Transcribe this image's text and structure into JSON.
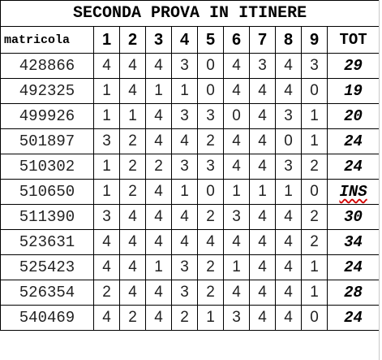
{
  "title": "SECONDA PROVA IN ITINERE",
  "headers": {
    "matricola": "matricola",
    "questions": [
      "1",
      "2",
      "3",
      "4",
      "5",
      "6",
      "7",
      "8",
      "9"
    ],
    "tot": "TOT"
  },
  "rows": [
    {
      "matricola": "428866",
      "scores": [
        "4",
        "4",
        "4",
        "3",
        "0",
        "4",
        "3",
        "4",
        "3"
      ],
      "tot": "29"
    },
    {
      "matricola": "492325",
      "scores": [
        "1",
        "4",
        "1",
        "1",
        "0",
        "4",
        "4",
        "4",
        "0"
      ],
      "tot": "19"
    },
    {
      "matricola": "499926",
      "scores": [
        "1",
        "1",
        "4",
        "3",
        "3",
        "0",
        "4",
        "3",
        "1"
      ],
      "tot": "20"
    },
    {
      "matricola": "501897",
      "scores": [
        "3",
        "2",
        "4",
        "4",
        "2",
        "4",
        "4",
        "0",
        "1"
      ],
      "tot": "24"
    },
    {
      "matricola": "510302",
      "scores": [
        "1",
        "2",
        "2",
        "3",
        "3",
        "4",
        "4",
        "3",
        "2"
      ],
      "tot": "24"
    },
    {
      "matricola": "510650",
      "scores": [
        "1",
        "2",
        "4",
        "1",
        "0",
        "1",
        "1",
        "1",
        "0"
      ],
      "tot": "INS"
    },
    {
      "matricola": "511390",
      "scores": [
        "3",
        "4",
        "4",
        "4",
        "2",
        "3",
        "4",
        "4",
        "2"
      ],
      "tot": "30"
    },
    {
      "matricola": "523631",
      "scores": [
        "4",
        "4",
        "4",
        "4",
        "4",
        "4",
        "4",
        "4",
        "2"
      ],
      "tot": "34"
    },
    {
      "matricola": "525423",
      "scores": [
        "4",
        "4",
        "1",
        "3",
        "2",
        "1",
        "4",
        "4",
        "1"
      ],
      "tot": "24"
    },
    {
      "matricola": "526354",
      "scores": [
        "2",
        "4",
        "4",
        "3",
        "2",
        "4",
        "4",
        "4",
        "1"
      ],
      "tot": "28"
    },
    {
      "matricola": "540469",
      "scores": [
        "4",
        "2",
        "4",
        "2",
        "1",
        "3",
        "4",
        "4",
        "0"
      ],
      "tot": "24"
    }
  ],
  "colors": {
    "grid": "#000000",
    "spellcheck_underline": "#d40000"
  }
}
